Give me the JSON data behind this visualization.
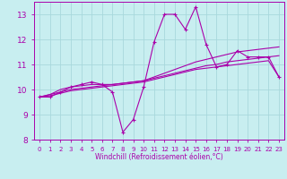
{
  "x": [
    0,
    1,
    2,
    3,
    4,
    5,
    6,
    7,
    8,
    9,
    10,
    11,
    12,
    13,
    14,
    15,
    16,
    17,
    18,
    19,
    20,
    21,
    22,
    23
  ],
  "line1": [
    9.7,
    9.7,
    9.9,
    10.1,
    10.2,
    10.3,
    10.2,
    9.9,
    8.3,
    8.8,
    10.1,
    11.9,
    13.0,
    13.0,
    12.4,
    13.3,
    11.8,
    10.9,
    11.0,
    11.55,
    11.3,
    11.3,
    11.3,
    10.5
  ],
  "line2": [
    9.7,
    9.75,
    9.85,
    9.95,
    10.0,
    10.05,
    10.1,
    10.15,
    10.2,
    10.25,
    10.3,
    10.4,
    10.5,
    10.6,
    10.7,
    10.8,
    10.85,
    10.9,
    10.95,
    11.0,
    11.05,
    11.1,
    11.15,
    10.5
  ],
  "line3": [
    9.7,
    9.8,
    9.9,
    10.0,
    10.05,
    10.1,
    10.15,
    10.2,
    10.25,
    10.3,
    10.35,
    10.45,
    10.55,
    10.65,
    10.75,
    10.85,
    10.95,
    11.0,
    11.1,
    11.15,
    11.2,
    11.25,
    11.3,
    11.35
  ],
  "line4": [
    9.7,
    9.8,
    10.0,
    10.1,
    10.15,
    10.2,
    10.2,
    10.2,
    10.25,
    10.3,
    10.35,
    10.5,
    10.65,
    10.8,
    10.95,
    11.1,
    11.2,
    11.3,
    11.4,
    11.5,
    11.55,
    11.6,
    11.65,
    11.7
  ],
  "bg_color": "#c8eef0",
  "grid_color": "#a8d8dc",
  "line_color": "#aa00aa",
  "xlabel": "Windchill (Refroidissement éolien,°C)",
  "ylim": [
    8,
    13.5
  ],
  "xlim": [
    -0.5,
    23.5
  ],
  "yticks": [
    8,
    9,
    10,
    11,
    12,
    13
  ],
  "xticks": [
    0,
    1,
    2,
    3,
    4,
    5,
    6,
    7,
    8,
    9,
    10,
    11,
    12,
    13,
    14,
    15,
    16,
    17,
    18,
    19,
    20,
    21,
    22,
    23
  ]
}
